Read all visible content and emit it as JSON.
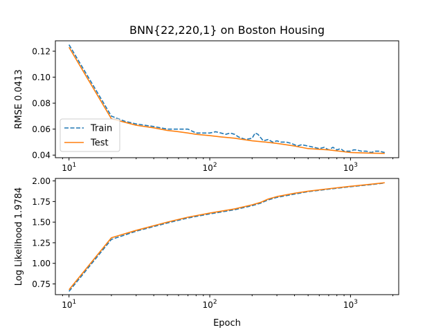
{
  "colors": {
    "train": "#1f77b4",
    "test": "#ff7f0e"
  },
  "chart_data": [
    {
      "type": "line",
      "title": "BNN{22,220,1} on Boston Housing",
      "xlabel": "",
      "ylabel": "RMSE 0.0413",
      "xscale": "log",
      "xlim": [
        8,
        2200
      ],
      "ylim": [
        0.038,
        0.128
      ],
      "xticks": [
        10,
        100,
        1000
      ],
      "xtick_labels": [
        [
          "10",
          "1"
        ],
        [
          "10",
          "2"
        ],
        [
          "10",
          "3"
        ]
      ],
      "yticks": [
        0.04,
        0.06,
        0.08,
        0.1,
        0.12
      ],
      "ytick_labels": [
        "0.04",
        "0.06",
        "0.08",
        "0.10",
        "0.12"
      ],
      "legend": {
        "placement": "lower-left",
        "entries": [
          "Train",
          "Test"
        ]
      },
      "grid": false,
      "series": [
        {
          "name": "Train",
          "style": "dashed",
          "x": [
            10,
            20,
            25,
            30,
            40,
            50,
            60,
            70,
            80,
            90,
            100,
            110,
            120,
            130,
            140,
            150,
            160,
            180,
            200,
            210,
            220,
            240,
            260,
            280,
            300,
            320,
            350,
            380,
            400,
            420,
            450,
            500,
            550,
            600,
            650,
            700,
            750,
            800,
            850,
            900,
            1000,
            1050,
            1100,
            1200,
            1300,
            1400,
            1500,
            1600,
            1750
          ],
          "y": [
            0.125,
            0.07,
            0.066,
            0.064,
            0.062,
            0.06,
            0.06,
            0.06,
            0.057,
            0.057,
            0.057,
            0.058,
            0.057,
            0.056,
            0.057,
            0.056,
            0.054,
            0.052,
            0.053,
            0.057,
            0.056,
            0.051,
            0.052,
            0.05,
            0.051,
            0.05,
            0.05,
            0.049,
            0.048,
            0.047,
            0.048,
            0.047,
            0.046,
            0.045,
            0.046,
            0.044,
            0.046,
            0.044,
            0.045,
            0.043,
            0.043,
            0.044,
            0.044,
            0.043,
            0.043,
            0.042,
            0.043,
            0.043,
            0.042
          ]
        },
        {
          "name": "Test",
          "style": "solid",
          "x": [
            10,
            20,
            30,
            40,
            50,
            60,
            70,
            80,
            100,
            120,
            150,
            200,
            250,
            300,
            400,
            500,
            700,
            1000,
            1400,
            1750
          ],
          "y": [
            0.123,
            0.068,
            0.063,
            0.061,
            0.059,
            0.058,
            0.057,
            0.056,
            0.055,
            0.054,
            0.053,
            0.051,
            0.05,
            0.049,
            0.047,
            0.045,
            0.044,
            0.042,
            0.0415,
            0.0413
          ]
        }
      ]
    },
    {
      "type": "line",
      "title": "",
      "xlabel": "Epoch",
      "ylabel": "Log Likelihood 1.9784",
      "xscale": "log",
      "xlim": [
        8,
        2200
      ],
      "ylim": [
        0.62,
        2.03
      ],
      "xticks": [
        10,
        100,
        1000
      ],
      "xtick_labels": [
        [
          "10",
          "1"
        ],
        [
          "10",
          "2"
        ],
        [
          "10",
          "3"
        ]
      ],
      "yticks": [
        0.75,
        1.0,
        1.25,
        1.5,
        1.75,
        2.0
      ],
      "ytick_labels": [
        "0.75",
        "1.00",
        "1.25",
        "1.50",
        "1.75",
        "2.00"
      ],
      "grid": false,
      "series": [
        {
          "name": "Train",
          "style": "dashed",
          "x": [
            10,
            20,
            30,
            50,
            70,
            100,
            150,
            200,
            230,
            260,
            300,
            400,
            500,
            700,
            1000,
            1400,
            1750
          ],
          "y": [
            0.66,
            1.29,
            1.39,
            1.49,
            1.55,
            1.6,
            1.65,
            1.7,
            1.73,
            1.77,
            1.8,
            1.84,
            1.87,
            1.9,
            1.93,
            1.955,
            1.975
          ]
        },
        {
          "name": "Test",
          "style": "solid",
          "x": [
            10,
            20,
            30,
            50,
            70,
            100,
            150,
            200,
            230,
            260,
            300,
            400,
            500,
            700,
            1000,
            1400,
            1750
          ],
          "y": [
            0.68,
            1.31,
            1.4,
            1.5,
            1.56,
            1.61,
            1.66,
            1.71,
            1.74,
            1.78,
            1.81,
            1.85,
            1.875,
            1.905,
            1.935,
            1.96,
            1.9784
          ]
        }
      ]
    }
  ]
}
